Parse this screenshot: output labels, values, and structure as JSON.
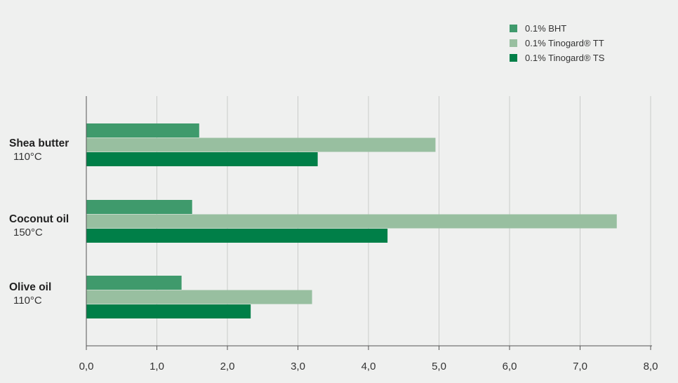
{
  "chart_data": {
    "type": "bar",
    "orientation": "horizontal",
    "categories": [
      {
        "name": "Shea butter",
        "temp": "110°C"
      },
      {
        "name": "Coconut oil",
        "temp": "150°C"
      },
      {
        "name": "Olive oil",
        "temp": "110°C"
      }
    ],
    "series": [
      {
        "name": "0.1% BHT",
        "color": "#3f9a6c",
        "values": [
          1.6,
          1.5,
          1.35
        ]
      },
      {
        "name": "0.1% Tinogard® TT",
        "color": "#98bfa0",
        "values": [
          4.95,
          7.52,
          3.2
        ]
      },
      {
        "name": "0.1% Tinogard® TS",
        "color": "#007f48",
        "values": [
          3.28,
          4.27,
          2.33
        ]
      }
    ],
    "xlim": [
      0,
      8
    ],
    "xticks": [
      "0,0",
      "1,0",
      "2,0",
      "3,0",
      "4,0",
      "5,0",
      "6,0",
      "7,0",
      "8,0"
    ],
    "grid": true,
    "legend_position": "top-right"
  }
}
